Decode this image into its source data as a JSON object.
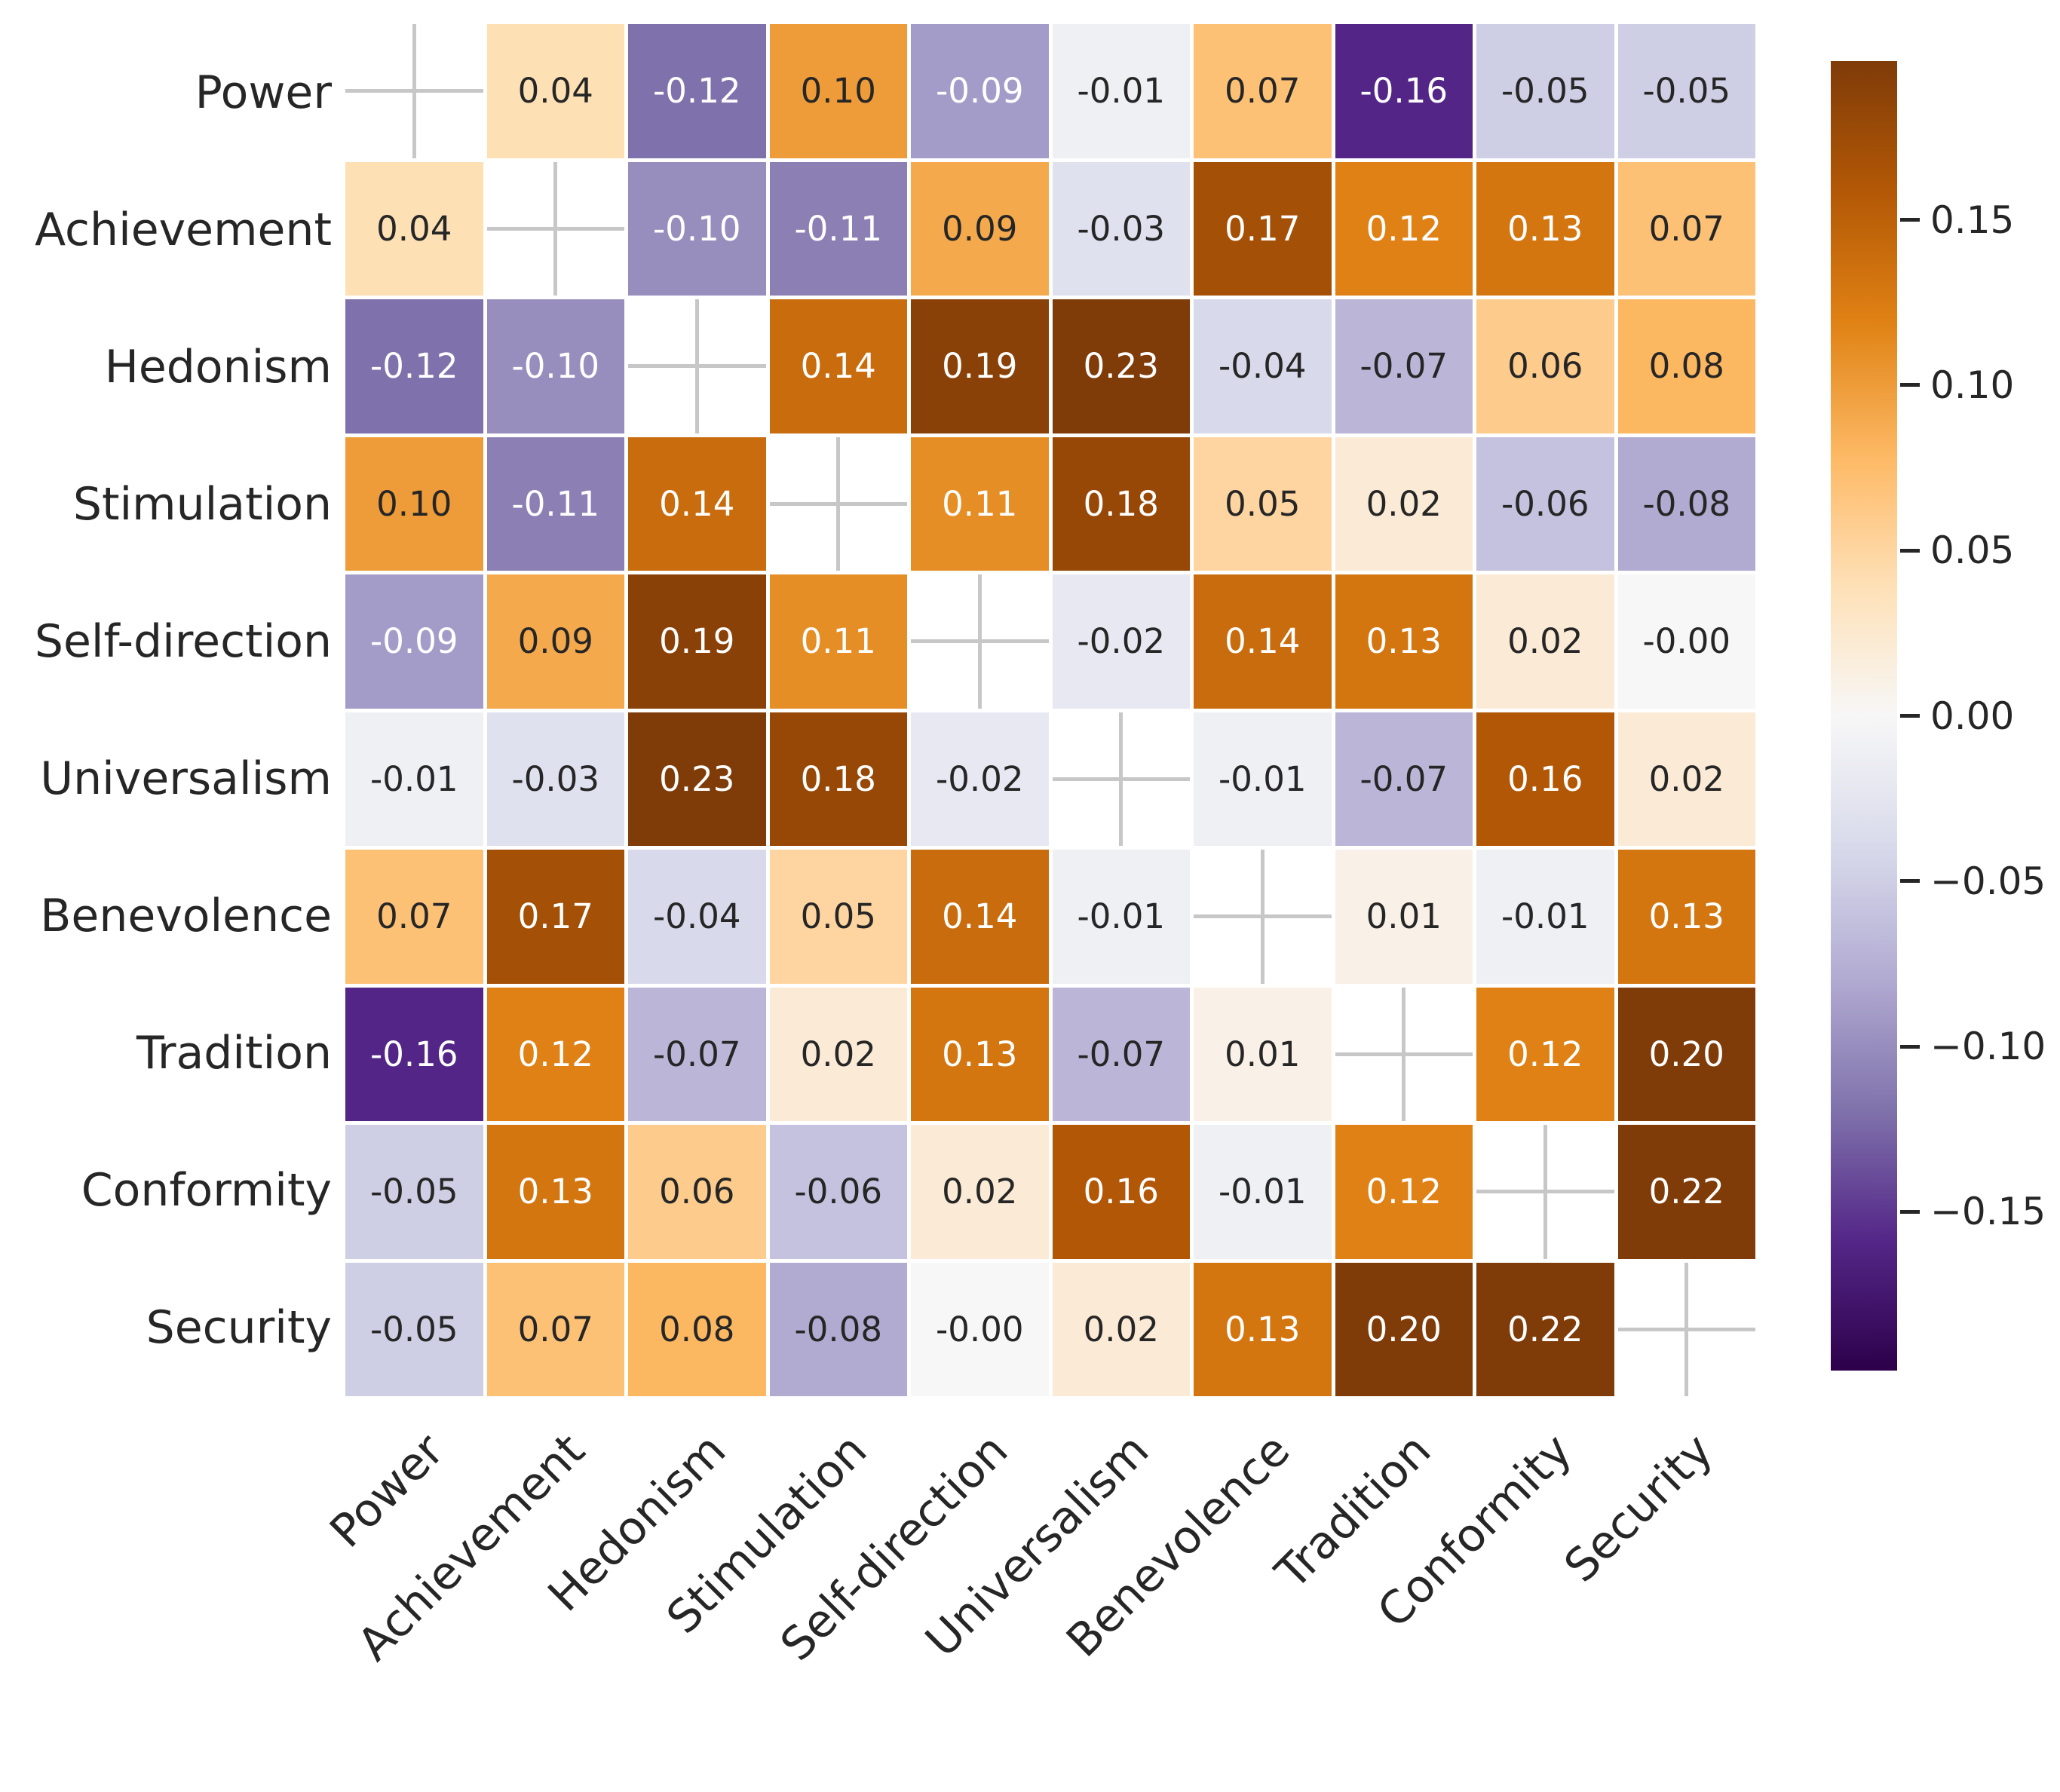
{
  "chart_data": {
    "type": "heatmap",
    "title": "",
    "description": "Correlation matrix heatmap of Schwartz values, diagonal masked with gray cross markers",
    "categories": [
      "Power",
      "Achievement",
      "Hedonism",
      "Stimulation",
      "Self-direction",
      "Universalism",
      "Benevolence",
      "Tradition",
      "Conformity",
      "Security"
    ],
    "cell_labels": [
      [
        null,
        "0.04",
        "-0.12",
        "0.10",
        "-0.09",
        "-0.01",
        "0.07",
        "-0.16",
        "-0.05",
        "-0.05"
      ],
      [
        "0.04",
        null,
        "-0.10",
        "-0.11",
        "0.09",
        "-0.03",
        "0.17",
        "0.12",
        "0.13",
        "0.07"
      ],
      [
        "-0.12",
        "-0.10",
        null,
        "0.14",
        "0.19",
        "0.23",
        "-0.04",
        "-0.07",
        "0.06",
        "0.08"
      ],
      [
        "0.10",
        "-0.11",
        "0.14",
        null,
        "0.11",
        "0.18",
        "0.05",
        "0.02",
        "-0.06",
        "-0.08"
      ],
      [
        "-0.09",
        "0.09",
        "0.19",
        "0.11",
        null,
        "-0.02",
        "0.14",
        "0.13",
        "0.02",
        "-0.00"
      ],
      [
        "-0.01",
        "-0.03",
        "0.23",
        "0.18",
        "-0.02",
        null,
        "-0.01",
        "-0.07",
        "0.16",
        "0.02"
      ],
      [
        "0.07",
        "0.17",
        "-0.04",
        "0.05",
        "0.14",
        "-0.01",
        null,
        "0.01",
        "-0.01",
        "0.13"
      ],
      [
        "-0.16",
        "0.12",
        "-0.07",
        "0.02",
        "0.13",
        "-0.07",
        "0.01",
        null,
        "0.12",
        "0.20"
      ],
      [
        "-0.05",
        "0.13",
        "0.06",
        "-0.06",
        "0.02",
        "0.16",
        "-0.01",
        "0.12",
        null,
        "0.22"
      ],
      [
        "-0.05",
        "0.07",
        "0.08",
        "-0.08",
        "-0.00",
        "0.02",
        "0.13",
        "0.20",
        "0.22",
        null
      ]
    ],
    "matrix": [
      [
        null,
        0.04,
        -0.12,
        0.1,
        -0.09,
        -0.01,
        0.07,
        -0.16,
        -0.05,
        -0.05
      ],
      [
        0.04,
        null,
        -0.1,
        -0.11,
        0.09,
        -0.03,
        0.17,
        0.12,
        0.13,
        0.07
      ],
      [
        -0.12,
        -0.1,
        null,
        0.14,
        0.19,
        0.23,
        -0.04,
        -0.07,
        0.06,
        0.08
      ],
      [
        0.1,
        -0.11,
        0.14,
        null,
        0.11,
        0.18,
        0.05,
        0.02,
        -0.06,
        -0.08
      ],
      [
        -0.09,
        0.09,
        0.19,
        0.11,
        null,
        -0.02,
        0.14,
        0.13,
        0.02,
        -0.0
      ],
      [
        -0.01,
        -0.03,
        0.23,
        0.18,
        -0.02,
        null,
        -0.01,
        -0.07,
        0.16,
        0.02
      ],
      [
        0.07,
        0.17,
        -0.04,
        0.05,
        0.14,
        -0.01,
        null,
        0.01,
        -0.01,
        0.13
      ],
      [
        -0.16,
        0.12,
        -0.07,
        0.02,
        0.13,
        -0.07,
        0.01,
        null,
        0.12,
        0.2
      ],
      [
        -0.05,
        0.13,
        0.06,
        -0.06,
        0.02,
        0.16,
        -0.01,
        0.12,
        null,
        0.22
      ],
      [
        -0.05,
        0.07,
        0.08,
        -0.08,
        -0.0,
        0.02,
        0.13,
        0.2,
        0.22,
        null
      ]
    ],
    "colormap": {
      "name": "PuOr_r",
      "vmin": -0.198,
      "vmax": 0.198,
      "anchors": [
        "#2d004b",
        "#542788",
        "#8073ac",
        "#b2abd2",
        "#d8daeb",
        "#f7f7f7",
        "#fee0b6",
        "#fdb863",
        "#e08214",
        "#b35806",
        "#7f3b08"
      ]
    },
    "colorbar": {
      "ticks": [
        {
          "value": 0.15,
          "label": "0.15"
        },
        {
          "value": 0.1,
          "label": "0.10"
        },
        {
          "value": 0.05,
          "label": "0.05"
        },
        {
          "value": 0.0,
          "label": "0.00"
        },
        {
          "value": -0.05,
          "label": "−0.05"
        },
        {
          "value": -0.1,
          "label": "−0.10"
        },
        {
          "value": -0.15,
          "label": "−0.15"
        }
      ],
      "position": "right"
    },
    "style": {
      "annotation_dark_color": "#262626",
      "annotation_light_color": "#ffffff",
      "axis_label_color": "#262626",
      "diagonal_cross_color": "#c7c7c7",
      "grid_gap_color": "#ffffff",
      "xlabel_rotation_deg": 45
    }
  }
}
